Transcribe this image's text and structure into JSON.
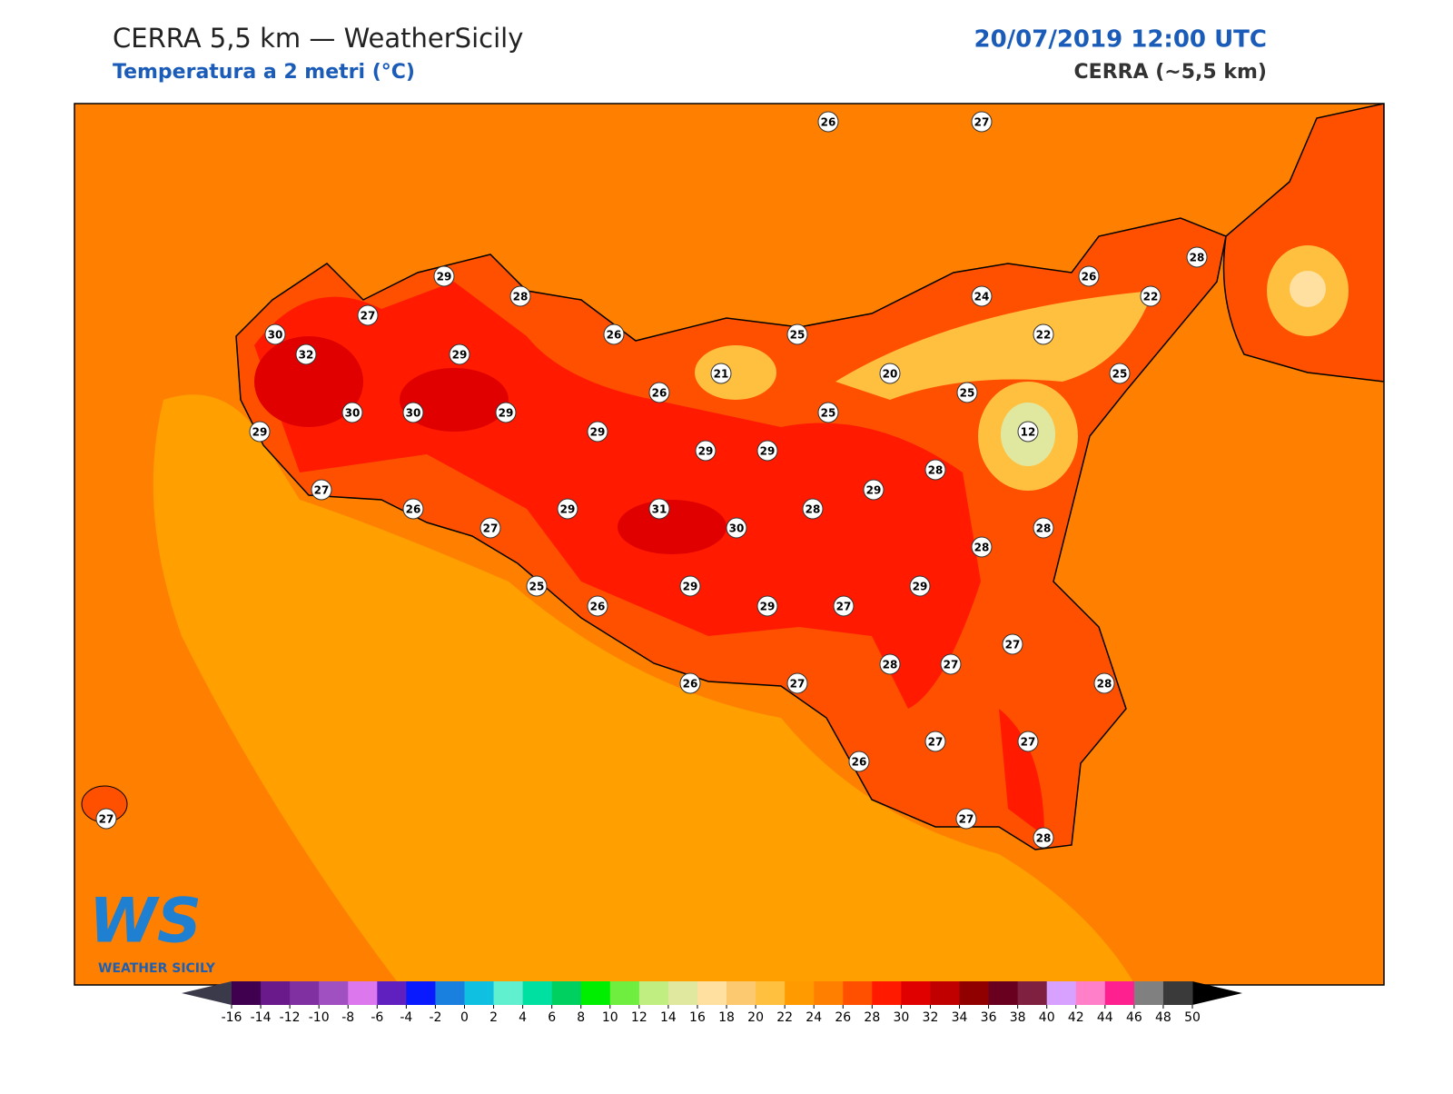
{
  "header": {
    "title": "CERRA 5,5 km — WeatherSicily",
    "subtitle": "Temperatura a 2 metri (°C)",
    "date": "20/07/2019 12:00 UTC",
    "model": "CERRA (~5,5 km)"
  },
  "map": {
    "station_values": [
      26,
      27,
      29,
      28,
      27,
      30,
      32,
      29,
      26,
      25,
      24,
      26,
      28,
      22,
      22,
      21,
      20,
      25,
      26,
      25,
      30,
      30,
      29,
      29,
      29,
      25,
      12,
      29,
      29,
      28,
      27,
      26,
      29,
      31,
      29,
      28,
      27,
      30,
      28,
      28,
      25,
      29,
      29,
      26,
      29,
      27,
      27,
      28,
      27,
      26,
      27,
      28,
      27,
      27,
      26,
      27,
      28,
      27
    ]
  },
  "colorbar": {
    "ticks": [
      -16,
      -14,
      -12,
      -10,
      -8,
      -6,
      -4,
      -2,
      0,
      2,
      4,
      6,
      8,
      10,
      12,
      14,
      16,
      18,
      20,
      22,
      24,
      26,
      28,
      30,
      32,
      34,
      36,
      38,
      40,
      42,
      44,
      46,
      48,
      50
    ],
    "colors": [
      "#40004f",
      "#6a1a8a",
      "#8030a0",
      "#a050c0",
      "#dd77ee",
      "#6020c0",
      "#0a1aff",
      "#1a80e0",
      "#10c0e0",
      "#60f0d0",
      "#00e0a0",
      "#00d060",
      "#00ee00",
      "#70ee40",
      "#c0ee80",
      "#e0e8a0",
      "#ffe0a0",
      "#fcc870",
      "#ffc040",
      "#ff9a00",
      "#ff8000",
      "#ff5000",
      "#ff1a00",
      "#e00000",
      "#c00000",
      "#900000",
      "#6a0020",
      "#802040",
      "#d8a0ff",
      "#ff80c8",
      "#ff2090",
      "#808080",
      "#3a3a3a"
    ],
    "under_color": "#3a3a4a",
    "over_color": "#000000"
  },
  "logo": {
    "mark": "WS",
    "name": "WEATHER SICILY"
  }
}
